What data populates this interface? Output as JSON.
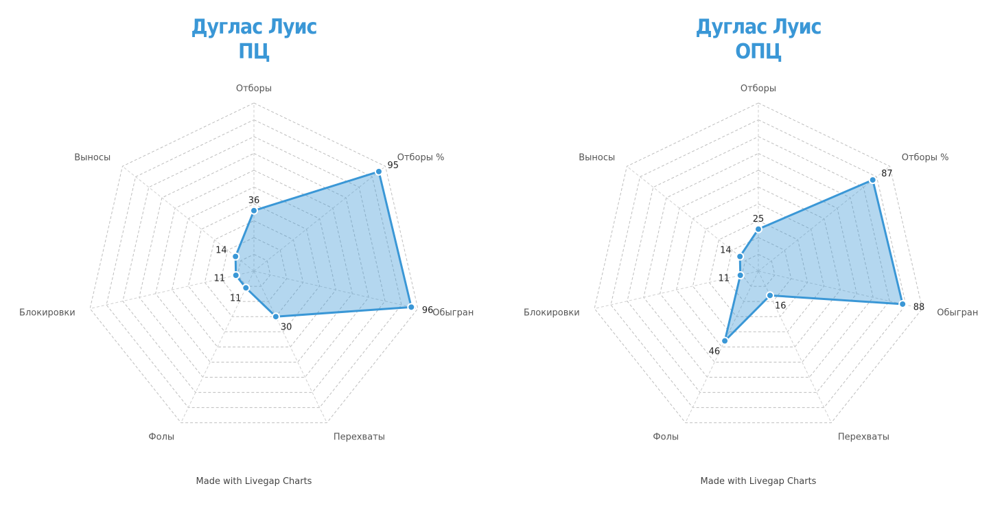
{
  "credit": "Made with Livegap Charts",
  "chart_data": [
    {
      "type": "radar",
      "title": [
        "Дуглас Луис",
        "ПЦ"
      ],
      "axes": [
        "Отборы",
        "Отборы %",
        "Обыгран",
        "Перехваты",
        "Фолы",
        "Блокировки",
        "Выносы"
      ],
      "series": [
        {
          "values": [
            36,
            95,
            96,
            30,
            11,
            11,
            14
          ]
        }
      ],
      "range": [
        0,
        100
      ],
      "grid_levels": 10,
      "color": "#3a97d6"
    },
    {
      "type": "radar",
      "title": [
        "Дуглас Луис",
        "ОПЦ"
      ],
      "axes": [
        "Отборы",
        "Отборы %",
        "Обыгран",
        "Перехваты",
        "Фолы",
        "Блокировки",
        "Выносы"
      ],
      "series": [
        {
          "values": [
            25,
            87,
            88,
            16,
            46,
            11,
            14
          ]
        }
      ],
      "range": [
        0,
        100
      ],
      "grid_levels": 10,
      "color": "#3a97d6"
    }
  ]
}
